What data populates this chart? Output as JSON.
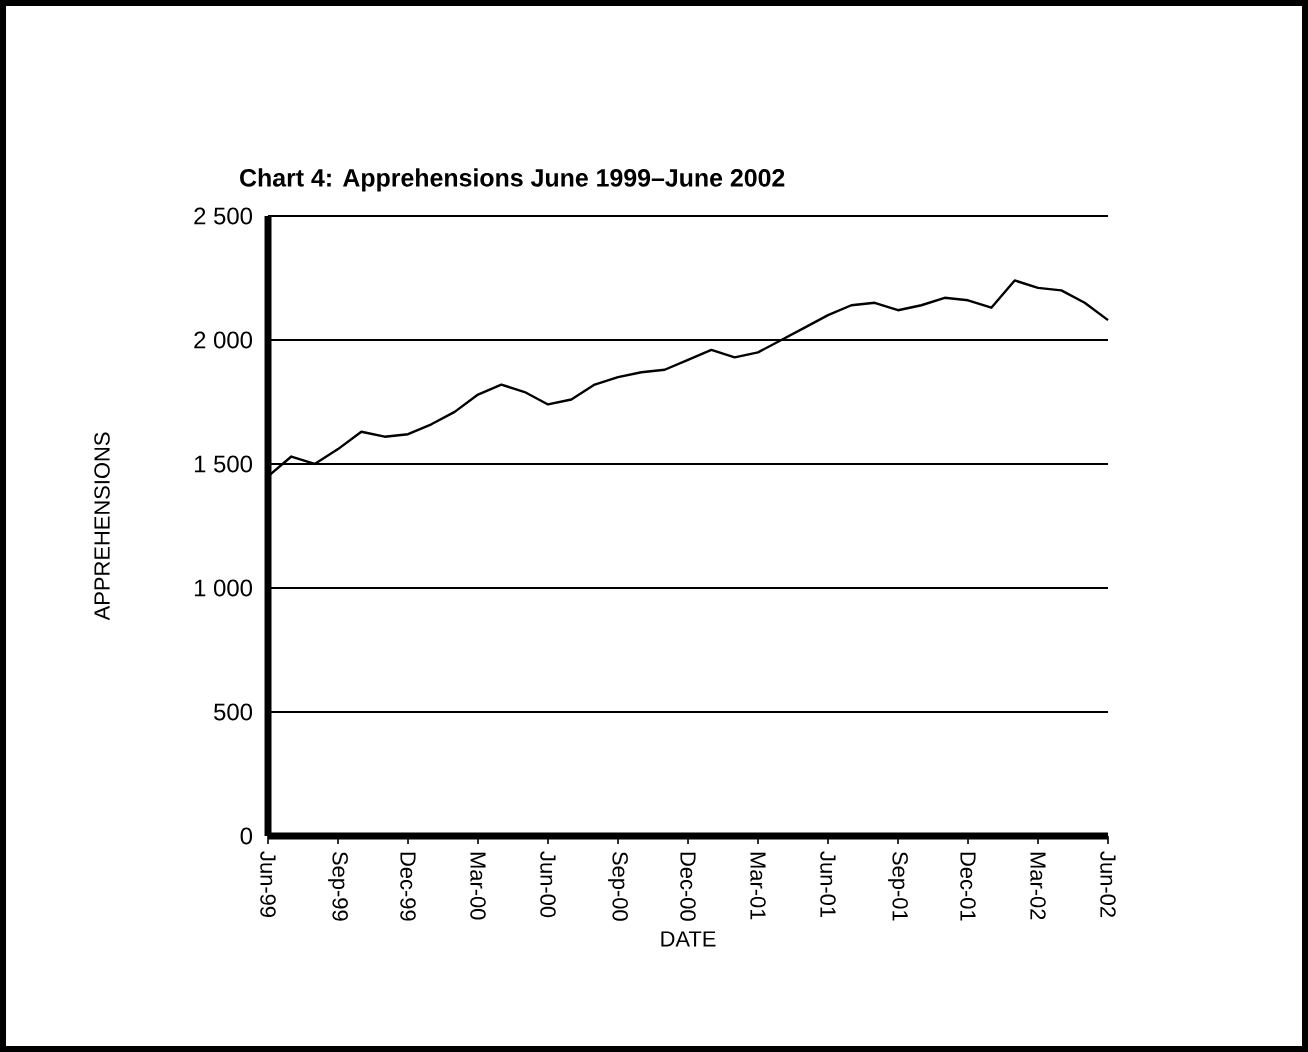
{
  "chart_data": {
    "type": "line",
    "title": "Chart 4: Apprehensions June 1999–June 2002",
    "xlabel": "DATE",
    "ylabel": "APPREHENSIONS",
    "categories": [
      "Jun-99",
      null,
      null,
      "Sep-99",
      null,
      null,
      "Dec-99",
      null,
      null,
      "Mar-00",
      null,
      null,
      "Jun-00",
      null,
      null,
      "Sep-00",
      null,
      null,
      "Dec-00",
      null,
      null,
      "Mar-01",
      null,
      null,
      "Jun-01",
      null,
      null,
      "Sep-01",
      null,
      null,
      "Dec-01",
      null,
      null,
      "Mar-02",
      null,
      null,
      "Jun-02"
    ],
    "series": [
      {
        "color": "#000000",
        "values": [
          1450,
          1530,
          1500,
          1560,
          1630,
          1610,
          1620,
          1660,
          1710,
          1780,
          1820,
          1790,
          1740,
          1760,
          1820,
          1850,
          1870,
          1880,
          1920,
          1960,
          1930,
          1950,
          2000,
          2050,
          2100,
          2140,
          2150,
          2120,
          2140,
          2170,
          2160,
          2130,
          2240,
          2210,
          2200,
          2150,
          2080
        ]
      }
    ],
    "ylim": [
      0,
      2500
    ],
    "yticks": [
      0,
      {
        "value": 500,
        "label": "500"
      },
      {
        "value": 1000,
        "label": "1 000"
      },
      {
        "value": 1500,
        "label": "1 500"
      },
      {
        "value": 2000,
        "label": "2 000"
      },
      {
        "value": 2500,
        "label": "2 500"
      }
    ],
    "grid": "y",
    "marker": "none",
    "line_style": "solid"
  }
}
